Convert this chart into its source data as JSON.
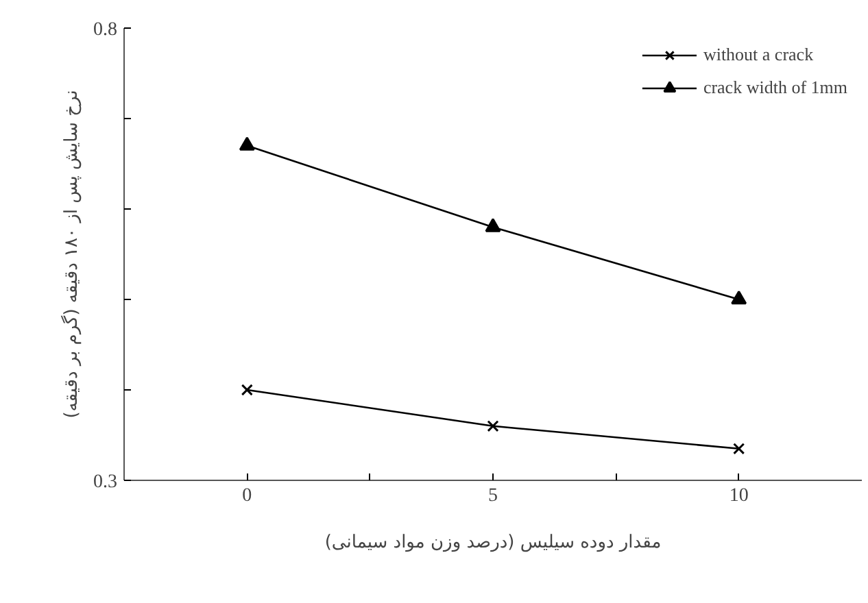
{
  "chart_data": {
    "type": "line",
    "xlabel": "مقدار دوده سیلیس (درصد وزن مواد سیمانی)",
    "ylabel": "نرخ سایش پس از ۱۸۰ دقیقه (گرم بر دقیقه)",
    "x": [
      0,
      5,
      10
    ],
    "series": [
      {
        "name": "without a crack",
        "color": "#000000",
        "marker": "cross",
        "values": [
          0.4,
          0.36,
          0.335
        ]
      },
      {
        "name": "crack width of 1mm",
        "color": "#000000",
        "marker": "triangle",
        "values": [
          0.67,
          0.58,
          0.5
        ]
      }
    ],
    "xlim": [
      -2.5,
      12.5
    ],
    "xticks": [
      0,
      {
        "value": 2.5,
        "label": null
      },
      5,
      {
        "value": 7.5,
        "label": null
      },
      10
    ],
    "ylim": [
      0.3,
      0.8
    ],
    "yticks": [
      0.3,
      {
        "value": 0.4,
        "label": null
      },
      {
        "value": 0.5,
        "label": null
      },
      {
        "value": 0.6,
        "label": null
      },
      {
        "value": 0.7,
        "label": null
      },
      0.8
    ],
    "grid": false,
    "legend": "top right",
    "line_style": "solid"
  }
}
